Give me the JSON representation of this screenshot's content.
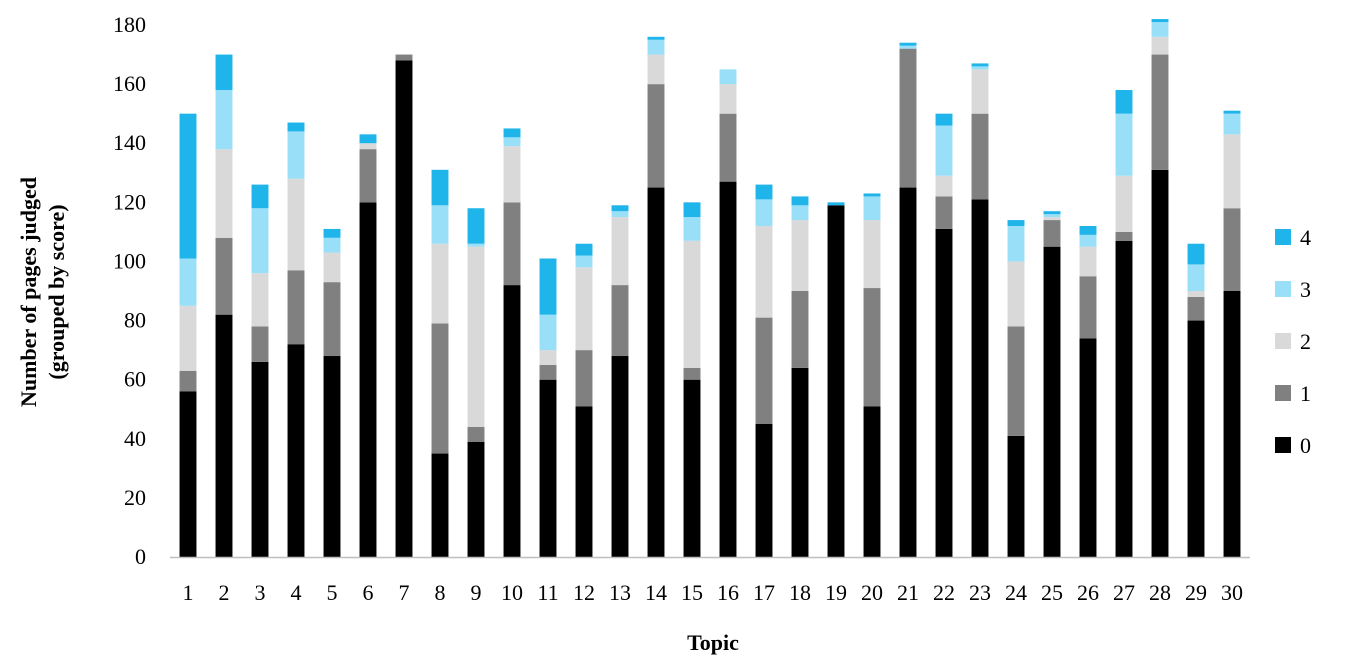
{
  "chart_data": {
    "type": "bar",
    "stacked": true,
    "xlabel": "Topic",
    "ylabel": "Number of pages judged\n(grouped by score)",
    "ylim": [
      0,
      180
    ],
    "yticks": [
      0,
      20,
      40,
      60,
      80,
      100,
      120,
      140,
      160,
      180
    ],
    "grid": false,
    "legend_position": "right",
    "categories": [
      "1",
      "2",
      "3",
      "4",
      "5",
      "6",
      "7",
      "8",
      "9",
      "10",
      "11",
      "12",
      "13",
      "14",
      "15",
      "16",
      "17",
      "18",
      "19",
      "20",
      "21",
      "22",
      "23",
      "24",
      "25",
      "26",
      "27",
      "28",
      "29",
      "30"
    ],
    "series": [
      {
        "name": "0",
        "color": "#000000",
        "values": [
          56,
          82,
          66,
          72,
          68,
          120,
          168,
          35,
          39,
          92,
          60,
          51,
          68,
          125,
          60,
          127,
          45,
          64,
          119,
          51,
          125,
          111,
          121,
          41,
          105,
          74,
          107,
          131,
          80,
          90
        ]
      },
      {
        "name": "1",
        "color": "#808080",
        "values": [
          7,
          26,
          12,
          25,
          25,
          18,
          2,
          44,
          5,
          28,
          5,
          19,
          24,
          35,
          4,
          23,
          36,
          26,
          0,
          40,
          47,
          11,
          29,
          37,
          9,
          21,
          3,
          39,
          8,
          28
        ]
      },
      {
        "name": "2",
        "color": "#d9d9d9",
        "values": [
          22,
          30,
          18,
          31,
          10,
          2,
          0,
          27,
          61,
          19,
          5,
          28,
          23,
          10,
          43,
          10,
          31,
          24,
          0,
          23,
          0,
          7,
          15,
          22,
          1,
          10,
          19,
          6,
          2,
          25
        ]
      },
      {
        "name": "3",
        "color": "#99dff8",
        "values": [
          16,
          20,
          22,
          16,
          5,
          0,
          0,
          13,
          1,
          3,
          12,
          4,
          2,
          5,
          8,
          5,
          9,
          5,
          0,
          8,
          1,
          17,
          1,
          12,
          1,
          4,
          21,
          5,
          9,
          7
        ]
      },
      {
        "name": "4",
        "color": "#1fb4ea",
        "values": [
          49,
          12,
          8,
          3,
          3,
          3,
          0,
          12,
          12,
          3,
          19,
          4,
          2,
          1,
          5,
          0,
          5,
          3,
          1,
          1,
          1,
          4,
          1,
          2,
          1,
          3,
          8,
          1,
          7,
          1
        ]
      }
    ]
  }
}
